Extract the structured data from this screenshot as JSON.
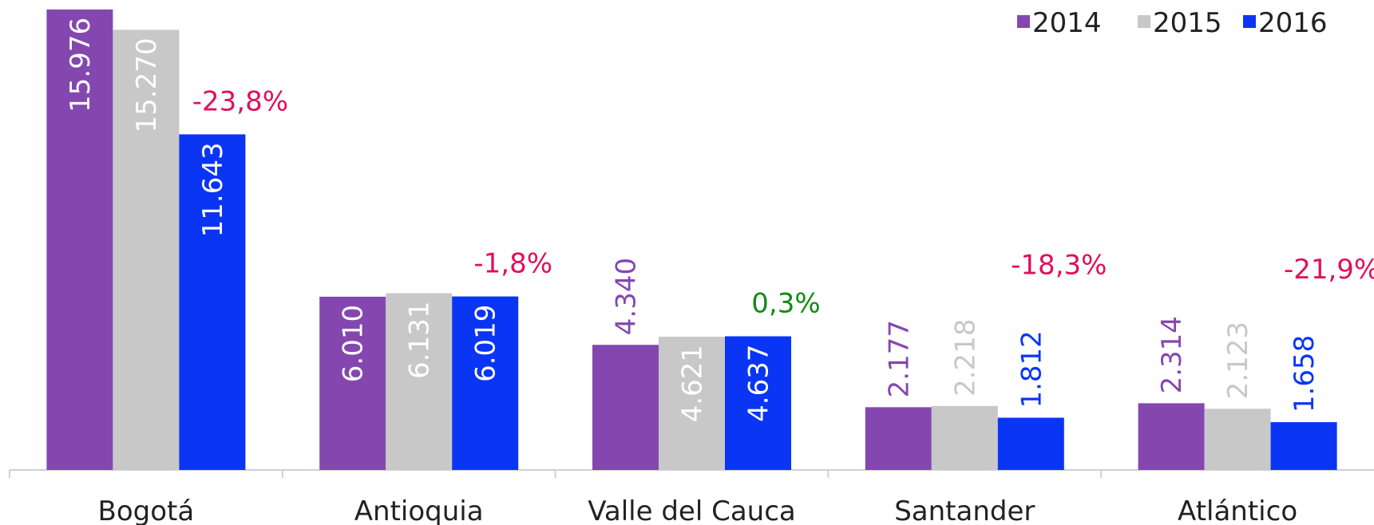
{
  "chart_data": {
    "type": "bar",
    "categories": [
      "Bogotá",
      "Antioquia",
      "Valle del Cauca",
      "Santander",
      "Atlántico"
    ],
    "series": [
      {
        "name": "2014",
        "color": "#8447b0",
        "values": [
          15976,
          6010,
          4340,
          2177,
          2314
        ],
        "value_labels": [
          "15.976",
          "6.010",
          "4.340",
          "2.177",
          "2.314"
        ]
      },
      {
        "name": "2015",
        "color": "#c8c8c8",
        "values": [
          15270,
          6131,
          4621,
          2218,
          2123
        ],
        "value_labels": [
          "15.270",
          "6.131",
          "4.621",
          "2.218",
          "2.123"
        ]
      },
      {
        "name": "2016",
        "color": "#0a35f5",
        "values": [
          11643,
          6019,
          4637,
          1812,
          1658
        ],
        "value_labels": [
          "11.643",
          "6.019",
          "4.637",
          "1.812",
          "1.658"
        ]
      }
    ],
    "annotations": [
      {
        "text": "-23,8%",
        "color": "#e0105a"
      },
      {
        "text": "-1,8%",
        "color": "#e0105a"
      },
      {
        "text": "0,3%",
        "color": "#138a13"
      },
      {
        "text": "-18,3%",
        "color": "#e0105a"
      },
      {
        "text": "-21,9%",
        "color": "#e0105a"
      }
    ],
    "ylim": [
      0,
      16000
    ],
    "legend": "top-right"
  }
}
